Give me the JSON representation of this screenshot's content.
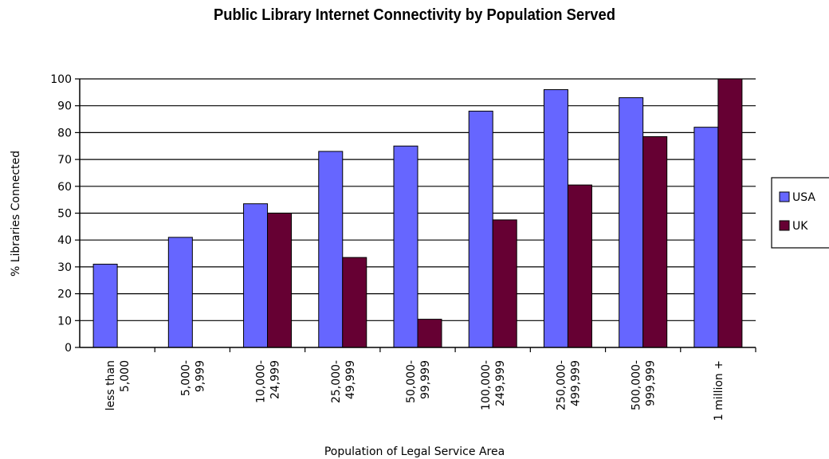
{
  "chart_data": {
    "type": "bar",
    "title": "Public Library Internet Connectivity by Population Served",
    "xlabel": "Population of Legal Service Area",
    "ylabel": "% Libraries Connected",
    "ylim": [
      0,
      100
    ],
    "yticks": [
      0,
      10,
      20,
      30,
      40,
      50,
      60,
      70,
      80,
      90,
      100
    ],
    "grid": true,
    "legend_position": "right",
    "categories": [
      [
        "less than",
        "5,000"
      ],
      [
        "5,000-",
        "9,999"
      ],
      [
        "10,000-",
        "24,999"
      ],
      [
        "25,000-",
        "49,999"
      ],
      [
        "50,000-",
        "99,999"
      ],
      [
        "100,000-",
        "249,999"
      ],
      [
        "250,000-",
        "499,999"
      ],
      [
        "500,000-",
        "999,999"
      ],
      [
        "1 million +"
      ]
    ],
    "series": [
      {
        "name": "USA",
        "color": "#6666ff",
        "values": [
          31,
          41,
          53.5,
          73,
          75,
          88,
          96,
          93,
          82
        ]
      },
      {
        "name": "UK",
        "color": "#660033",
        "values": [
          null,
          null,
          50,
          33.5,
          10.5,
          47.5,
          60.5,
          78.5,
          100
        ]
      }
    ]
  }
}
